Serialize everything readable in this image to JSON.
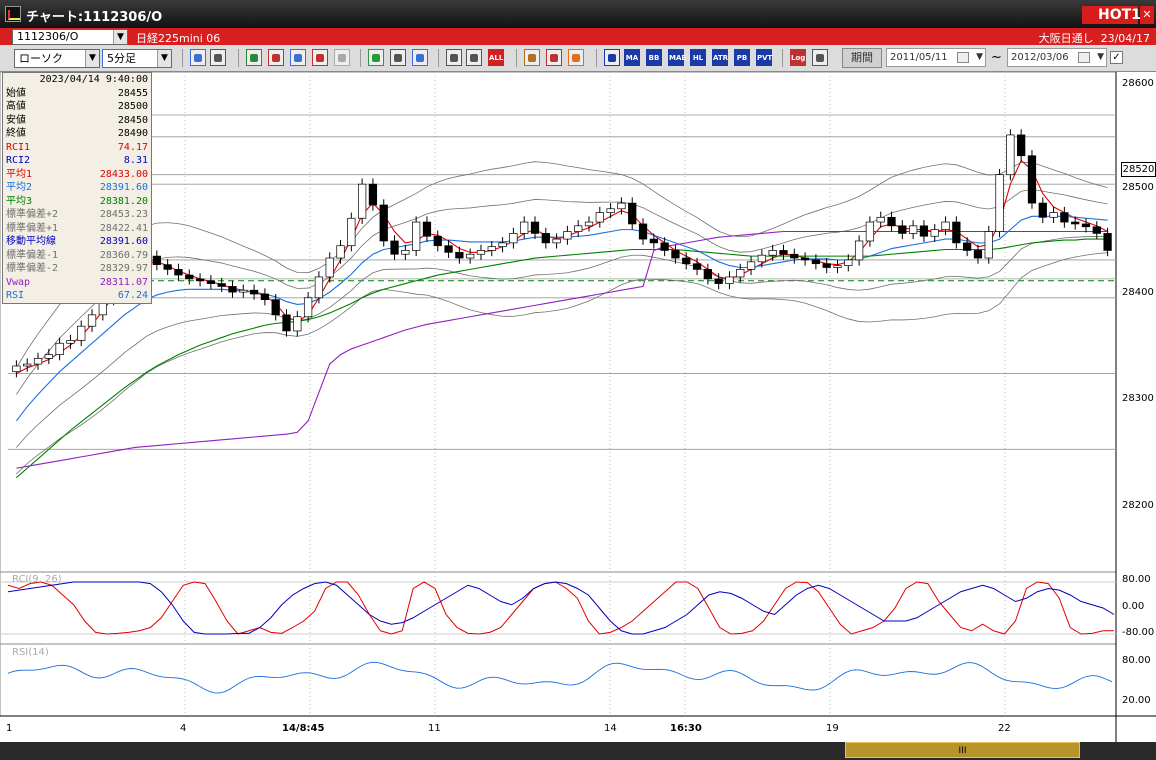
{
  "window": {
    "title": "チャート:1112306/O",
    "hot_label": "HOT",
    "hot_num": "1",
    "close_label": "✕"
  },
  "info": {
    "instrument_code": "1112306/O",
    "instrument_name": "日経225mini 06",
    "market": "大阪日通し",
    "date": "23/04/17"
  },
  "controls": {
    "chart_type": "ローソク",
    "timeframe": "5分足",
    "period_label": "期間",
    "date_from": "2011/05/11",
    "date_to": "2012/03/06",
    "tilde": "~",
    "check": "✓"
  },
  "toolbar_icons": [
    {
      "name": "zoom-icon",
      "label": "",
      "color": "#3a6fd8"
    },
    {
      "name": "cursor-line-icon",
      "label": "",
      "color": "#555"
    },
    {
      "name": "indicator-icon",
      "label": "",
      "color": "#2a8a3a"
    },
    {
      "name": "search-chart-icon",
      "label": "",
      "color": "#c03030"
    },
    {
      "name": "bar-chart-icon",
      "label": "",
      "color": "#3a6fd8"
    },
    {
      "name": "line-chart-icon",
      "label": "",
      "color": "#c03030"
    },
    {
      "name": "warning-icon",
      "label": "",
      "color": "#aaa"
    },
    {
      "name": "pencil-icon",
      "label": "",
      "color": "#2a9a3a"
    },
    {
      "name": "pointer-icon",
      "label": "",
      "color": "#555"
    },
    {
      "name": "undo-icon",
      "label": "",
      "color": "#3a6fd8"
    },
    {
      "name": "candle-left-icon",
      "label": "",
      "color": "#555"
    },
    {
      "name": "candle-right-icon",
      "label": "",
      "color": "#555"
    },
    {
      "name": "all-icon",
      "label": "ALL",
      "color": "#d02020"
    },
    {
      "name": "gear-icon",
      "label": "",
      "color": "#b07020"
    },
    {
      "name": "wrench-icon",
      "label": "",
      "color": "#c03030"
    },
    {
      "name": "palette-icon",
      "label": "",
      "color": "#e07020"
    },
    {
      "name": "grid-icon",
      "label": "",
      "color": "#1a3aa8"
    },
    {
      "name": "ma-icon",
      "label": "MA",
      "color": "#1a3aa8"
    },
    {
      "name": "bb-icon",
      "label": "BB",
      "color": "#1a3aa8"
    },
    {
      "name": "mae-icon",
      "label": "MAE",
      "color": "#1a3aa8"
    },
    {
      "name": "hl-icon",
      "label": "HL",
      "color": "#1a3aa8"
    },
    {
      "name": "atr-icon",
      "label": "ATR",
      "color": "#1a3aa8"
    },
    {
      "name": "pb-icon",
      "label": "PB",
      "color": "#1a3aa8"
    },
    {
      "name": "pvt-icon",
      "label": "PVT",
      "color": "#1a3aa8"
    },
    {
      "name": "log-icon",
      "label": "Log",
      "color": "#c03030"
    },
    {
      "name": "export-icon",
      "label": "",
      "color": "#555"
    }
  ],
  "data_panel": {
    "time": "2023/04/14  9:40:00",
    "rows": [
      {
        "label": "始値",
        "value": "28455",
        "color": "#000000"
      },
      {
        "label": "高値",
        "value": "28500",
        "color": "#000000"
      },
      {
        "label": "安値",
        "value": "28450",
        "color": "#000000"
      },
      {
        "label": "終値",
        "value": "28490",
        "color": "#000000"
      },
      {
        "label": "RCI1",
        "value": "74.17",
        "color": "#e00000"
      },
      {
        "label": "RCI2",
        "value": "8.31",
        "color": "#0000c0"
      },
      {
        "label": "平均1",
        "value": "28433.00",
        "color": "#e00000"
      },
      {
        "label": "平均2",
        "value": "28391.60",
        "color": "#1a6fe0"
      },
      {
        "label": "平均3",
        "value": "28381.20",
        "color": "#008000"
      },
      {
        "label": "標準偏差+2",
        "value": "28453.23",
        "color": "#707070"
      },
      {
        "label": "標準偏差+1",
        "value": "28422.41",
        "color": "#707070"
      },
      {
        "label": "移動平均線",
        "value": "28391.60",
        "color": "#0000c0"
      },
      {
        "label": "標準偏差-1",
        "value": "28360.79",
        "color": "#707070"
      },
      {
        "label": "標準偏差-2",
        "value": "28329.97",
        "color": "#707070"
      },
      {
        "label": "Vwap",
        "value": "28311.07",
        "color": "#9020c0"
      },
      {
        "label": "RSI",
        "value": "67.24",
        "color": "#1a6fe0"
      }
    ]
  },
  "axis": {
    "current_price": "28520",
    "price_ticks": [
      "28600",
      "28500",
      "28400",
      "28300",
      "28200"
    ],
    "rci_ticks": [
      "80.00",
      "0.00",
      "-80.00"
    ],
    "rsi_ticks": [
      "80.00",
      "20.00"
    ],
    "x_ticks": [
      {
        "label": "1",
        "bold": false
      },
      {
        "label": "4",
        "bold": false
      },
      {
        "label": "14/8:45",
        "bold": true
      },
      {
        "label": "11",
        "bold": false
      },
      {
        "label": "14",
        "bold": false
      },
      {
        "label": "16:30",
        "bold": true
      },
      {
        "label": "19",
        "bold": false
      },
      {
        "label": "22",
        "bold": false
      }
    ]
  },
  "subpanels": {
    "rci_title": "RCI(9, 26)",
    "rsi_title": "RSI(14)"
  },
  "scrollbar": {
    "grip": "III"
  },
  "chart_data": {
    "type": "line",
    "title": "",
    "ylim": [
      28130,
      28620
    ],
    "horizontal_levels": [
      28583,
      28560,
      28520,
      28510,
      28430,
      28410,
      28390,
      28310,
      28230
    ],
    "candles": {
      "open": [
        28312,
        28318,
        28320,
        28326,
        28330,
        28342,
        28345,
        28360,
        28372,
        28388,
        28403,
        28414,
        28426,
        28434,
        28425,
        28420,
        28414,
        28410,
        28408,
        28405,
        28402,
        28396,
        28398,
        28394,
        28388,
        28372,
        28355,
        28370,
        28390,
        28412,
        28432,
        28445,
        28474,
        28510,
        28488,
        28450,
        28436,
        28440,
        28470,
        28455,
        28445,
        28438,
        28432,
        28436,
        28440,
        28444,
        28448,
        28458,
        28470,
        28458,
        28448,
        28452,
        28460,
        28466,
        28470,
        28480,
        28484,
        28490,
        28468,
        28452,
        28448,
        28440,
        28432,
        28426,
        28420,
        28410,
        28405,
        28412,
        28420,
        28428,
        28435,
        28440,
        28436,
        28432,
        28430,
        28426,
        28422,
        28424,
        28430,
        28450,
        28470,
        28475,
        28466,
        28458,
        28466,
        28455,
        28462,
        28470,
        28448,
        28440,
        28432,
        28460,
        28520,
        28562,
        28540,
        28490,
        28475,
        28480,
        28470,
        28468,
        28465,
        28458
      ],
      "close": [
        28318,
        28320,
        28326,
        28330,
        28342,
        28345,
        28360,
        28372,
        28388,
        28403,
        28414,
        28426,
        28434,
        28425,
        28420,
        28414,
        28410,
        28408,
        28405,
        28402,
        28396,
        28398,
        28394,
        28388,
        28372,
        28355,
        28370,
        28390,
        28412,
        28432,
        28445,
        28474,
        28510,
        28488,
        28450,
        28436,
        28440,
        28470,
        28455,
        28445,
        28438,
        28432,
        28436,
        28440,
        28444,
        28448,
        28458,
        28470,
        28458,
        28448,
        28452,
        28460,
        28466,
        28470,
        28480,
        28484,
        28490,
        28468,
        28452,
        28448,
        28440,
        28432,
        28426,
        28420,
        28410,
        28405,
        28412,
        28420,
        28428,
        28435,
        28440,
        28436,
        28432,
        28430,
        28426,
        28422,
        28424,
        28430,
        28450,
        28470,
        28475,
        28466,
        28458,
        28466,
        28455,
        28462,
        28470,
        28448,
        28440,
        28432,
        28460,
        28520,
        28562,
        28540,
        28490,
        28475,
        28480,
        28470,
        28468,
        28465,
        28458,
        28440
      ]
    },
    "series": [
      {
        "name": "平均1",
        "color": "#e00000",
        "values": [
          28310,
          28316,
          28320,
          28325,
          28332,
          28340,
          28350,
          28362,
          28376,
          28392,
          28405,
          28416,
          28426,
          28428,
          28424,
          28418,
          28414,
          28410,
          28407,
          28404,
          28400,
          28398,
          28396,
          28392,
          28384,
          28370,
          28365,
          28372,
          28390,
          28410,
          28430,
          28452,
          28478,
          28490,
          28478,
          28460,
          28448,
          28450,
          28458,
          28456,
          28450,
          28442,
          28438,
          28438,
          28440,
          28444,
          28450,
          28458,
          28462,
          28456,
          28452,
          28455,
          28460,
          28464,
          28470,
          28476,
          28482,
          28478,
          28466,
          28456,
          28448,
          28440,
          28434,
          28428,
          28420,
          28412,
          28410,
          28414,
          28420,
          28426,
          28432,
          28436,
          28435,
          28432,
          28429,
          28426,
          28425,
          28428,
          28438,
          28452,
          28465,
          28468,
          28464,
          28462,
          28462,
          28460,
          28462,
          28460,
          28452,
          28444,
          28446,
          28470,
          28510,
          28535,
          28525,
          28500,
          28486,
          28480,
          28474,
          28470,
          28466,
          28460
        ]
      },
      {
        "name": "平均2",
        "color": "#1a6fe0",
        "values": [
          28260,
          28275,
          28288,
          28300,
          28312,
          28322,
          28332,
          28342,
          28352,
          28362,
          28372,
          28380,
          28388,
          28393,
          28396,
          28398,
          28399,
          28399,
          28399,
          28399,
          28398,
          28397,
          28396,
          28394,
          28391,
          28386,
          28383,
          28384,
          28389,
          28396,
          28405,
          28415,
          28427,
          28436,
          28441,
          28443,
          28445,
          28447,
          28450,
          28451,
          28451,
          28450,
          28449,
          28449,
          28449,
          28449,
          28450,
          28452,
          28454,
          28454,
          28454,
          28454,
          28455,
          28456,
          28458,
          28460,
          28462,
          28462,
          28460,
          28456,
          28452,
          28448,
          28444,
          28440,
          28434,
          28428,
          28424,
          28422,
          28422,
          28424,
          28426,
          28428,
          28430,
          28431,
          28431,
          28431,
          28430,
          28430,
          28431,
          28434,
          28438,
          28442,
          28444,
          28446,
          28448,
          28450,
          28452,
          28452,
          28450,
          28448,
          28448,
          28452,
          28462,
          28472,
          28476,
          28476,
          28476,
          28476,
          28475,
          28474,
          28473,
          28472
        ]
      },
      {
        "name": "平均3",
        "color": "#008000",
        "values": [
          28200,
          28210,
          28220,
          28230,
          28240,
          28250,
          28259,
          28268,
          28277,
          28286,
          28295,
          28303,
          28311,
          28318,
          28324,
          28330,
          28335,
          28340,
          28344,
          28348,
          28352,
          28355,
          28358,
          28361,
          28363,
          28364,
          28365,
          28367,
          28370,
          28374,
          28379,
          28384,
          28390,
          28395,
          28399,
          28402,
          28405,
          28408,
          28411,
          28414,
          28416,
          28418,
          28420,
          28422,
          28424,
          28426,
          28428,
          28430,
          28432,
          28433,
          28434,
          28435,
          28436,
          28437,
          28438,
          28439,
          28440,
          28441,
          28441,
          28441,
          28441,
          28441,
          28440,
          28439,
          28438,
          28437,
          28436,
          28435,
          28434,
          28434,
          28434,
          28434,
          28434,
          28434,
          28434,
          28434,
          28434,
          28434,
          28434,
          28434,
          28435,
          28436,
          28437,
          28438,
          28439,
          28440,
          28441,
          28441,
          28441,
          28441,
          28441,
          28442,
          28444,
          28446,
          28448,
          28449,
          28450,
          28451,
          28451,
          28452,
          28452,
          28452
        ]
      },
      {
        "name": "Vwap",
        "color": "#9020c0",
        "values": [
          28210,
          28212,
          28214,
          28216,
          28218,
          28220,
          28222,
          28224,
          28226,
          28228,
          28230,
          28232,
          28233,
          28234,
          28235,
          28236,
          28237,
          28238,
          28239,
          28240,
          28241,
          28242,
          28243,
          28244,
          28245,
          28246,
          28248,
          28260,
          28290,
          28320,
          28330,
          28336,
          28340,
          28344,
          28348,
          28352,
          28356,
          28359,
          28362,
          28364,
          28366,
          28368,
          28370,
          28372,
          28374,
          28376,
          28378,
          28380,
          28382,
          28384,
          28386,
          28388,
          28390,
          28392,
          28394,
          28396,
          28398,
          28400,
          28402,
          28440,
          28444,
          28446,
          28448,
          28450,
          28452,
          28454,
          28455,
          28456,
          28457,
          28458,
          28459,
          28460,
          28460,
          28460,
          28460,
          28460,
          28460,
          28460,
          28460,
          28460,
          28460,
          28460,
          28460,
          28460,
          28460,
          28460,
          28460,
          28460,
          28460,
          28460,
          28460,
          28460,
          28460,
          28460,
          28460,
          28460,
          28460,
          28460,
          28460,
          28460,
          28460,
          28460
        ]
      }
    ],
    "rci1": [
      70,
      60,
      75,
      80,
      70,
      40,
      10,
      -40,
      -75,
      -80,
      -78,
      -75,
      -70,
      -60,
      -30,
      20,
      70,
      80,
      75,
      20,
      -40,
      -80,
      -70,
      -60,
      -75,
      -78,
      -60,
      -40,
      -10,
      60,
      80,
      80,
      40,
      -20,
      -70,
      -80,
      -70,
      60,
      80,
      60,
      -20,
      -60,
      -78,
      -80,
      -75,
      -60,
      -20,
      20,
      60,
      75,
      80,
      60,
      30,
      -40,
      -80,
      -75,
      -60,
      -40,
      -10,
      20,
      50,
      80,
      80,
      60,
      0,
      -60,
      -80,
      -78,
      -70,
      -40,
      10,
      60,
      80,
      78,
      50,
      0,
      -50,
      -80,
      -70,
      -60,
      -40,
      0,
      60,
      80,
      75,
      20,
      -20,
      -60,
      -70,
      -50,
      -70,
      -80,
      -40,
      60,
      80,
      75,
      30,
      -60,
      -80,
      -78,
      -70,
      -70
    ],
    "rci2": [
      50,
      55,
      60,
      65,
      70,
      75,
      80,
      80,
      80,
      80,
      80,
      80,
      80,
      75,
      50,
      10,
      -40,
      -75,
      -80,
      -80,
      -80,
      -78,
      -78,
      -60,
      -30,
      10,
      40,
      60,
      75,
      80,
      70,
      40,
      10,
      -20,
      -40,
      -50,
      -45,
      -30,
      -10,
      10,
      30,
      50,
      70,
      60,
      40,
      20,
      10,
      30,
      60,
      75,
      80,
      75,
      60,
      40,
      0,
      -40,
      -70,
      -80,
      -80,
      -70,
      -60,
      -40,
      -20,
      10,
      40,
      50,
      45,
      30,
      10,
      -10,
      -20,
      10,
      40,
      60,
      70,
      60,
      40,
      20,
      0,
      -20,
      -40,
      -40,
      -40,
      -30,
      -10,
      10,
      30,
      50,
      60,
      70,
      60,
      40,
      20,
      30,
      50,
      60,
      55,
      40,
      20,
      10,
      0,
      -20
    ]
  }
}
